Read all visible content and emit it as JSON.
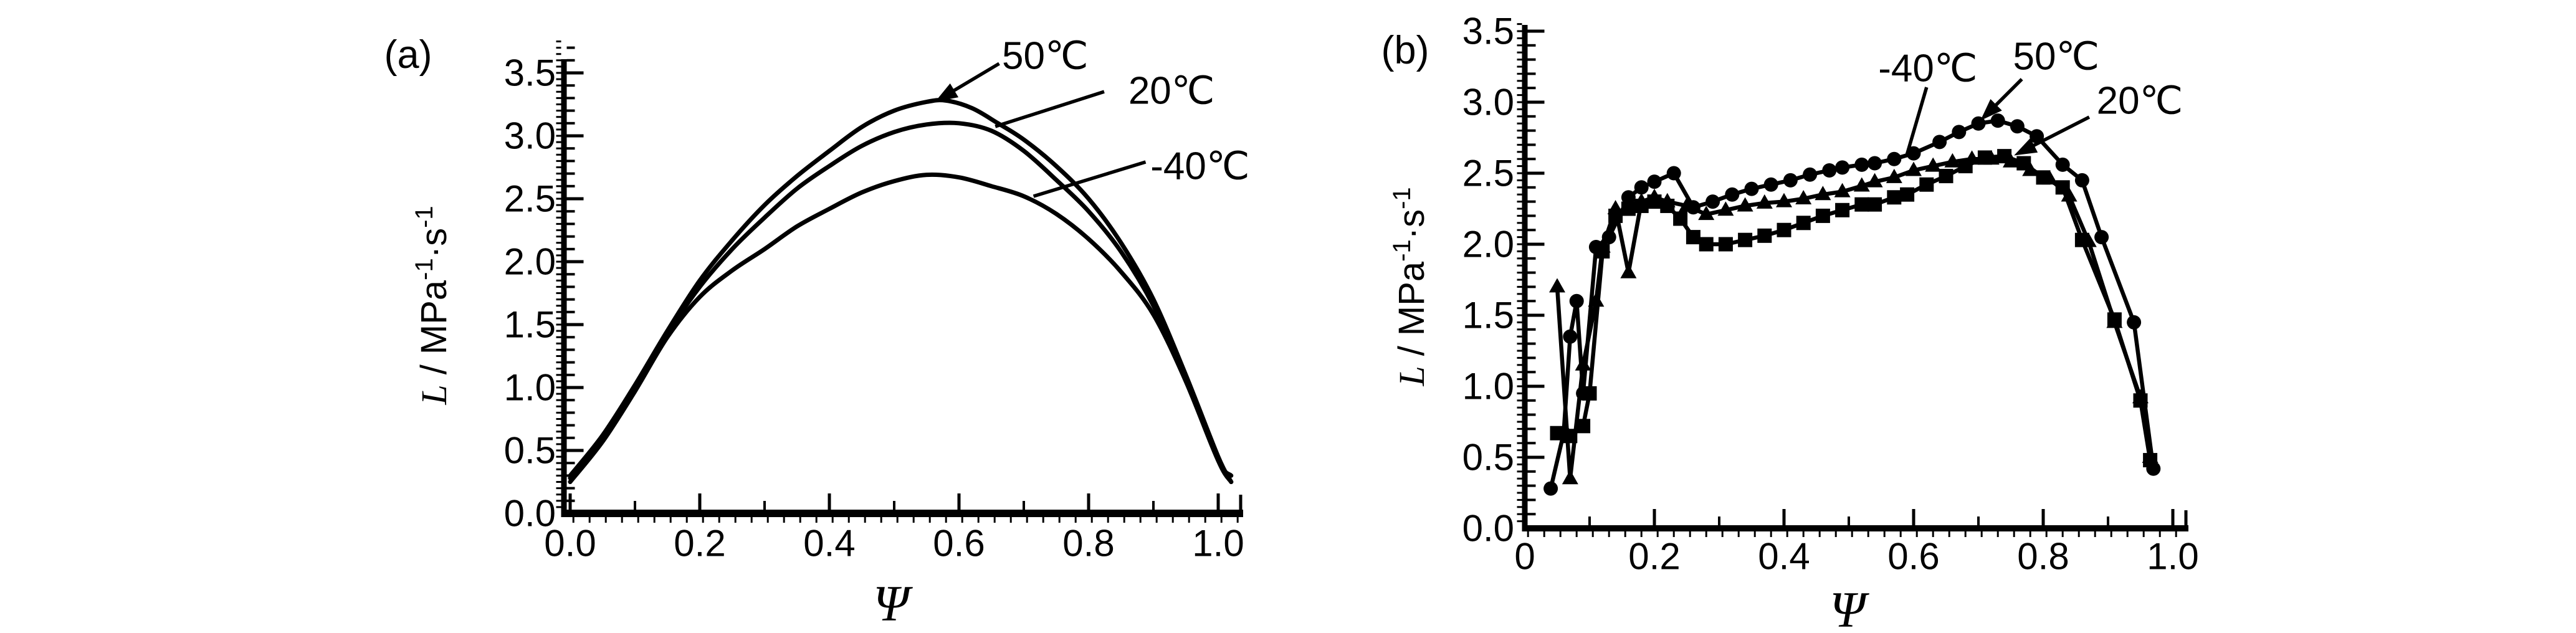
{
  "figure": {
    "background": "#ffffff",
    "ink_color": "#000000",
    "description": "Two black-and-white line charts of L vs Psi at three temperatures"
  },
  "chart_data": [
    {
      "panel": "(a)",
      "type": "line",
      "xlabel": "Ψ",
      "ylabel": "L / MPa⁻¹·s⁻¹",
      "ylabel_parts": {
        "variable": "L",
        "pre_unit": " / MPa",
        "sup1": "-1",
        "mid": "·s",
        "sup2": "-1"
      },
      "xlim": [
        0,
        1.04
      ],
      "ylim": [
        0,
        3.75
      ],
      "grid": false,
      "legend_position": "none",
      "x_ticks": [
        {
          "v": 0.0,
          "label": "0.0"
        },
        {
          "v": 0.2,
          "label": "0.2"
        },
        {
          "v": 0.4,
          "label": "0.4"
        },
        {
          "v": 0.6,
          "label": "0.6"
        },
        {
          "v": 0.8,
          "label": "0.8"
        },
        {
          "v": 1.0,
          "label": "1.0"
        }
      ],
      "y_ticks": [
        {
          "v": 0.0,
          "label": "0.0"
        },
        {
          "v": 0.5,
          "label": "0.5"
        },
        {
          "v": 1.0,
          "label": "1.0"
        },
        {
          "v": 1.5,
          "label": "1.5"
        },
        {
          "v": 2.0,
          "label": "2.0"
        },
        {
          "v": 2.5,
          "label": "2.5"
        },
        {
          "v": 3.0,
          "label": "3.0"
        },
        {
          "v": 3.5,
          "label": "3.5"
        }
      ],
      "series": [
        {
          "name": "50℃",
          "marker": "none",
          "points": [
            [
              0,
              0.3
            ],
            [
              0.05,
              0.62
            ],
            [
              0.1,
              1.02
            ],
            [
              0.15,
              1.45
            ],
            [
              0.2,
              1.85
            ],
            [
              0.25,
              2.17
            ],
            [
              0.3,
              2.45
            ],
            [
              0.35,
              2.68
            ],
            [
              0.4,
              2.88
            ],
            [
              0.45,
              3.07
            ],
            [
              0.5,
              3.2
            ],
            [
              0.55,
              3.27
            ],
            [
              0.58,
              3.28
            ],
            [
              0.62,
              3.22
            ],
            [
              0.66,
              3.1
            ],
            [
              0.7,
              2.97
            ],
            [
              0.75,
              2.76
            ],
            [
              0.8,
              2.5
            ],
            [
              0.85,
              2.15
            ],
            [
              0.9,
              1.7
            ],
            [
              0.95,
              1.1
            ],
            [
              1.0,
              0.45
            ],
            [
              1.02,
              0.25
            ]
          ]
        },
        {
          "name": "20℃",
          "marker": "none",
          "points": [
            [
              0,
              0.28
            ],
            [
              0.05,
              0.6
            ],
            [
              0.1,
              1.0
            ],
            [
              0.15,
              1.43
            ],
            [
              0.2,
              1.8
            ],
            [
              0.25,
              2.1
            ],
            [
              0.3,
              2.35
            ],
            [
              0.35,
              2.58
            ],
            [
              0.4,
              2.76
            ],
            [
              0.45,
              2.92
            ],
            [
              0.5,
              3.03
            ],
            [
              0.55,
              3.09
            ],
            [
              0.6,
              3.1
            ],
            [
              0.65,
              3.04
            ],
            [
              0.7,
              2.88
            ],
            [
              0.75,
              2.65
            ],
            [
              0.8,
              2.4
            ],
            [
              0.85,
              2.08
            ],
            [
              0.9,
              1.65
            ],
            [
              0.95,
              1.08
            ],
            [
              1.0,
              0.42
            ],
            [
              1.02,
              0.25
            ]
          ]
        },
        {
          "name": "-40℃",
          "marker": "none",
          "points": [
            [
              0,
              0.25
            ],
            [
              0.05,
              0.57
            ],
            [
              0.1,
              0.97
            ],
            [
              0.15,
              1.4
            ],
            [
              0.2,
              1.72
            ],
            [
              0.25,
              1.93
            ],
            [
              0.3,
              2.1
            ],
            [
              0.35,
              2.28
            ],
            [
              0.4,
              2.42
            ],
            [
              0.45,
              2.55
            ],
            [
              0.5,
              2.64
            ],
            [
              0.55,
              2.69
            ],
            [
              0.6,
              2.67
            ],
            [
              0.65,
              2.6
            ],
            [
              0.7,
              2.52
            ],
            [
              0.75,
              2.38
            ],
            [
              0.8,
              2.18
            ],
            [
              0.85,
              1.92
            ],
            [
              0.9,
              1.58
            ],
            [
              0.95,
              1.05
            ],
            [
              1.0,
              0.42
            ],
            [
              1.02,
              0.3
            ]
          ]
        }
      ],
      "annotations": [
        {
          "text": "50℃",
          "x": 0.733,
          "y": 3.633,
          "leader": [
            [
              0.662,
              3.574
            ],
            [
              0.563,
              3.27
            ]
          ],
          "arrow": true
        },
        {
          "text": "20℃",
          "x": 0.928,
          "y": 3.356,
          "leader": [
            [
              0.824,
              3.351
            ],
            [
              0.656,
              3.074
            ]
          ],
          "arrow": false
        },
        {
          "text": "-40℃",
          "x": 0.972,
          "y": 2.757,
          "leader": [
            [
              0.888,
              2.792
            ],
            [
              0.715,
              2.52
            ]
          ],
          "arrow": false
        }
      ]
    },
    {
      "panel": "(b)",
      "type": "line",
      "xlabel": "Ψ",
      "ylabel": "L / MPa⁻¹·s⁻¹",
      "ylabel_parts": {
        "variable": "L",
        "pre_unit": " / MPa",
        "sup1": "-1",
        "mid": "·s",
        "sup2": "-1"
      },
      "xlim": [
        0,
        1.02
      ],
      "ylim": [
        0,
        3.55
      ],
      "grid": false,
      "legend_position": "none",
      "x_ticks": [
        {
          "v": 0.0,
          "label": "0"
        },
        {
          "v": 0.2,
          "label": "0.2"
        },
        {
          "v": 0.4,
          "label": "0.4"
        },
        {
          "v": 0.6,
          "label": "0.6"
        },
        {
          "v": 0.8,
          "label": "0.8"
        },
        {
          "v": 1.0,
          "label": "1.0"
        }
      ],
      "y_ticks": [
        {
          "v": 0.0,
          "label": "0.0"
        },
        {
          "v": 0.5,
          "label": "0.5"
        },
        {
          "v": 1.0,
          "label": "1.0"
        },
        {
          "v": 1.5,
          "label": "1.5"
        },
        {
          "v": 2.0,
          "label": "2.0"
        },
        {
          "v": 2.5,
          "label": "2.5"
        },
        {
          "v": 3.0,
          "label": "3.0"
        },
        {
          "v": 3.5,
          "label": "3.5"
        }
      ],
      "series": [
        {
          "name": "50℃",
          "marker": "circle",
          "points": [
            [
              0.04,
              0.28
            ],
            [
              0.06,
              0.67
            ],
            [
              0.07,
              1.35
            ],
            [
              0.08,
              1.6
            ],
            [
              0.09,
              0.95
            ],
            [
              0.11,
              1.98
            ],
            [
              0.13,
              2.05
            ],
            [
              0.16,
              2.33
            ],
            [
              0.18,
              2.4
            ],
            [
              0.2,
              2.44
            ],
            [
              0.23,
              2.5
            ],
            [
              0.26,
              2.26
            ],
            [
              0.29,
              2.3
            ],
            [
              0.32,
              2.35
            ],
            [
              0.35,
              2.39
            ],
            [
              0.38,
              2.42
            ],
            [
              0.41,
              2.45
            ],
            [
              0.44,
              2.49
            ],
            [
              0.47,
              2.52
            ],
            [
              0.49,
              2.54
            ],
            [
              0.52,
              2.56
            ],
            [
              0.54,
              2.57
            ],
            [
              0.57,
              2.6
            ],
            [
              0.6,
              2.64
            ],
            [
              0.64,
              2.72
            ],
            [
              0.67,
              2.79
            ],
            [
              0.7,
              2.85
            ],
            [
              0.73,
              2.87
            ],
            [
              0.76,
              2.83
            ],
            [
              0.79,
              2.76
            ],
            [
              0.83,
              2.56
            ],
            [
              0.86,
              2.45
            ],
            [
              0.89,
              2.05
            ],
            [
              0.94,
              1.45
            ],
            [
              0.97,
              0.42
            ]
          ]
        },
        {
          "name": "20℃",
          "marker": "square",
          "points": [
            [
              0.05,
              0.67
            ],
            [
              0.07,
              0.65
            ],
            [
              0.09,
              0.72
            ],
            [
              0.1,
              0.95
            ],
            [
              0.12,
              1.95
            ],
            [
              0.14,
              2.2
            ],
            [
              0.16,
              2.25
            ],
            [
              0.18,
              2.27
            ],
            [
              0.2,
              2.3
            ],
            [
              0.22,
              2.27
            ],
            [
              0.24,
              2.18
            ],
            [
              0.26,
              2.05
            ],
            [
              0.28,
              2.0
            ],
            [
              0.31,
              2.0
            ],
            [
              0.34,
              2.03
            ],
            [
              0.37,
              2.06
            ],
            [
              0.4,
              2.1
            ],
            [
              0.43,
              2.15
            ],
            [
              0.46,
              2.2
            ],
            [
              0.49,
              2.24
            ],
            [
              0.52,
              2.28
            ],
            [
              0.54,
              2.28
            ],
            [
              0.57,
              2.33
            ],
            [
              0.59,
              2.35
            ],
            [
              0.62,
              2.42
            ],
            [
              0.65,
              2.48
            ],
            [
              0.68,
              2.55
            ],
            [
              0.71,
              2.61
            ],
            [
              0.74,
              2.62
            ],
            [
              0.77,
              2.57
            ],
            [
              0.8,
              2.47
            ],
            [
              0.83,
              2.4
            ],
            [
              0.86,
              2.03
            ],
            [
              0.91,
              1.47
            ],
            [
              0.95,
              0.9
            ],
            [
              0.965,
              0.48
            ]
          ]
        },
        {
          "name": "-40℃",
          "marker": "triangle",
          "points": [
            [
              0.05,
              1.7
            ],
            [
              0.07,
              0.35
            ],
            [
              0.09,
              1.15
            ],
            [
              0.11,
              1.6
            ],
            [
              0.12,
              1.98
            ],
            [
              0.14,
              2.25
            ],
            [
              0.16,
              1.8
            ],
            [
              0.18,
              2.3
            ],
            [
              0.2,
              2.33
            ],
            [
              0.22,
              2.3
            ],
            [
              0.25,
              2.27
            ],
            [
              0.28,
              2.21
            ],
            [
              0.31,
              2.24
            ],
            [
              0.34,
              2.27
            ],
            [
              0.37,
              2.29
            ],
            [
              0.4,
              2.3
            ],
            [
              0.43,
              2.32
            ],
            [
              0.46,
              2.35
            ],
            [
              0.49,
              2.37
            ],
            [
              0.52,
              2.41
            ],
            [
              0.54,
              2.44
            ],
            [
              0.57,
              2.47
            ],
            [
              0.6,
              2.52
            ],
            [
              0.63,
              2.55
            ],
            [
              0.66,
              2.58
            ],
            [
              0.69,
              2.6
            ],
            [
              0.72,
              2.6
            ],
            [
              0.75,
              2.58
            ],
            [
              0.78,
              2.52
            ],
            [
              0.81,
              2.46
            ],
            [
              0.84,
              2.34
            ],
            [
              0.87,
              2.02
            ],
            [
              0.91,
              1.45
            ],
            [
              0.95,
              0.92
            ],
            [
              0.965,
              0.5
            ]
          ]
        }
      ],
      "annotations": [
        {
          "text": "-40℃",
          "x": 0.622,
          "y": 3.237,
          "leader": [
            [
              0.62,
              3.105
            ],
            [
              0.589,
              2.62
            ]
          ],
          "arrow": false
        },
        {
          "text": "50℃",
          "x": 0.82,
          "y": 3.32,
          "leader": [
            [
              0.767,
              3.162
            ],
            [
              0.703,
              2.87
            ]
          ],
          "arrow": true
        },
        {
          "text": "20℃",
          "x": 0.949,
          "y": 3.009,
          "leader": [
            [
              0.871,
              2.895
            ],
            [
              0.755,
              2.625
            ]
          ],
          "arrow": true
        }
      ]
    }
  ]
}
